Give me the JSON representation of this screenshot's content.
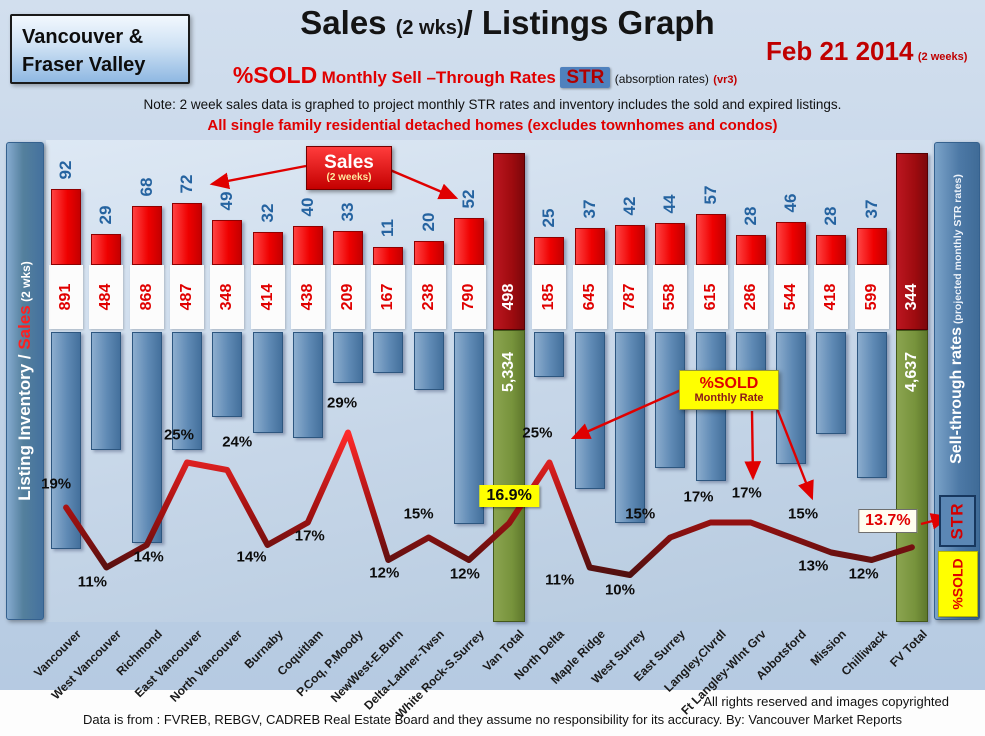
{
  "header": {
    "region": {
      "line1": "Vancouver &",
      "line2": "Fraser Valley"
    },
    "title": {
      "main": "Sales ",
      "size_note": "(2 wks)",
      "rest": "/ Listings Graph"
    },
    "date": {
      "text": "Feb 21 2014",
      "suffix": "(2 weeks)"
    },
    "subtitle": {
      "pct_sold": "%SOLD",
      "rates": "Monthly Sell –Through Rates",
      "str": "STR",
      "absorption": "(absorption rates)",
      "version": "(vr3)"
    },
    "note": "Note: 2 week sales data is graphed to project monthly STR rates and inventory includes the sold and expired listings.",
    "scope": "All single family residential detached homes (excludes townhomes and condos)"
  },
  "axes": {
    "left": {
      "part1": "Listing Inventory / ",
      "sales": "Sales",
      "part2": " (2  wks)"
    },
    "right": {
      "main": "Sell-through rates",
      "sub": "  (projected monthly STR rates)",
      "str": "STR",
      "pct_sold": "%SOLD"
    }
  },
  "callouts": {
    "sales": {
      "title": "Sales",
      "sub": "(2 weeks)"
    },
    "pct_sold": {
      "title": "%SOLD",
      "sub": "Monthly Rate"
    }
  },
  "footer": {
    "rights": "All rights reserved and  images copyrighted",
    "source": "Data is from : FVREB, REBGV, CADREB Real Estate Board and they assume no responsibility for its accuracy.  By: Vancouver Market Reports"
  },
  "chart_data": {
    "type": "bar+line combo",
    "title": "Sales (2 wks) / Listings Graph — %SOLD Monthly Sell-Through Rates (STR), Feb 21 2014",
    "categories": [
      "Vancouver",
      "West Vancouver",
      "Richmond",
      "East Vancouver",
      "North Vancouver",
      "Burnaby",
      "Coquitlam",
      "P.Coq, P.Moody",
      "NewWest-E.Burn",
      "Delta-Ladner-Twsn",
      "White Rock-S.Surrey",
      "Van Total",
      "North Delta",
      "Maple Ridge",
      "West Surrey",
      "East Surrey",
      "Langley,Clvrdl",
      "Ft Langley-Wlnt Grv",
      "Abbotsford",
      "Mission",
      "Chilliwack",
      "FV Total"
    ],
    "series": [
      {
        "name": "Sales (2 weeks)",
        "type": "bar",
        "values": [
          92,
          29,
          68,
          72,
          49,
          32,
          40,
          33,
          11,
          20,
          52,
          498,
          25,
          37,
          42,
          44,
          57,
          28,
          46,
          28,
          37,
          344
        ],
        "labels": [
          "92",
          "29",
          "68",
          "72",
          "49",
          "32",
          "40",
          "33",
          "11",
          "20",
          "52",
          "498",
          "25",
          "37",
          "42",
          "44",
          "57",
          "28",
          "46",
          "28",
          "37",
          "344"
        ]
      },
      {
        "name": "Listing Inventory (includes sold and expired listings)",
        "type": "bar",
        "values": [
          891,
          484,
          868,
          487,
          348,
          414,
          438,
          209,
          167,
          238,
          790,
          5334,
          185,
          645,
          787,
          558,
          615,
          286,
          544,
          418,
          599,
          4637
        ],
        "labels": [
          "891",
          "484",
          "868",
          "487",
          "348",
          "414",
          "438",
          "209",
          "167",
          "238",
          "790",
          "5,334",
          "185",
          "645",
          "787",
          "558",
          "615",
          "286",
          "544",
          "418",
          "599",
          "4,637"
        ]
      },
      {
        "name": "%SOLD monthly sell-through rate (projected)",
        "type": "line",
        "values": [
          19,
          11,
          14,
          25,
          24,
          14,
          17,
          29,
          12,
          15,
          12,
          16.9,
          25,
          11,
          10,
          15,
          17,
          17,
          15,
          13,
          12,
          13.7
        ],
        "labels": [
          "19%",
          "11%",
          "14%",
          "25%",
          "24%",
          "14%",
          "17%",
          "29%",
          "12%",
          "15%",
          "12%",
          "16.9%",
          "25%",
          "11%",
          "10%",
          "15%",
          "17%",
          "17%",
          "15%",
          "13%",
          "12%",
          "13.7%"
        ]
      }
    ],
    "total_indices": [
      11,
      21
    ],
    "highlight_indices": {
      "yellow_chip": 11,
      "boxed_red": 21
    },
    "grid": false,
    "legend_position": "none",
    "colors": {
      "sales_bar": "#e00000",
      "inventory_bar": "#5e89b4",
      "total_sales_bar": "#9e0b0f",
      "total_inventory_bar": "#77933c",
      "line": "#8b1a1a",
      "sales_label": "#2563a0",
      "inventory_label": "#e00000",
      "highlight_yellow": "#ffff00",
      "background": "#c3d4e8"
    }
  }
}
